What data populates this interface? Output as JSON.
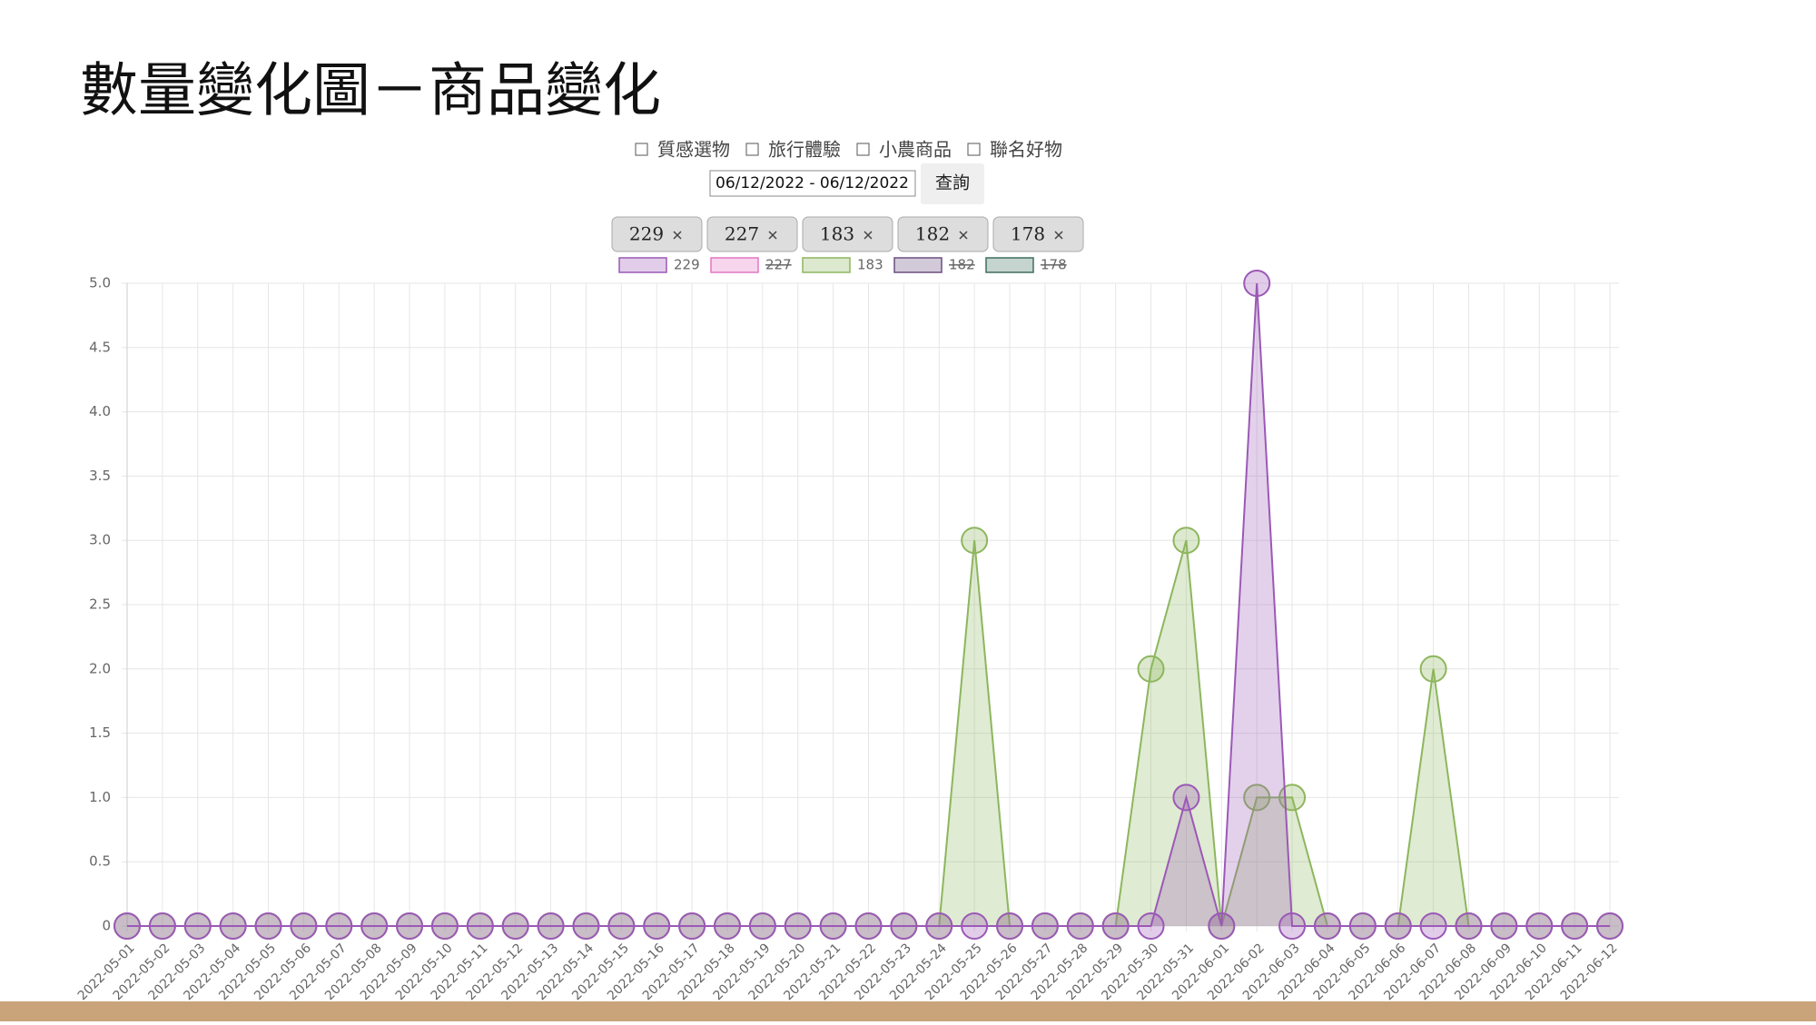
{
  "slide_title": "數量變化圖－商品變化",
  "filters": {
    "checkboxes": [
      "質感選物",
      "旅行體驗",
      "小農商品",
      "聯名好物"
    ],
    "date_range": "06/12/2022 - 06/12/2022",
    "button": "查詢",
    "chips": [
      "229",
      "227",
      "183",
      "182",
      "178"
    ]
  },
  "chart_data": {
    "type": "line",
    "area": true,
    "categories": [
      "2022-05-01",
      "2022-05-02",
      "2022-05-03",
      "2022-05-04",
      "2022-05-05",
      "2022-05-06",
      "2022-05-07",
      "2022-05-08",
      "2022-05-09",
      "2022-05-10",
      "2022-05-11",
      "2022-05-12",
      "2022-05-13",
      "2022-05-14",
      "2022-05-15",
      "2022-05-16",
      "2022-05-17",
      "2022-05-18",
      "2022-05-19",
      "2022-05-20",
      "2022-05-21",
      "2022-05-22",
      "2022-05-23",
      "2022-05-24",
      "2022-05-25",
      "2022-05-26",
      "2022-05-27",
      "2022-05-28",
      "2022-05-29",
      "2022-05-30",
      "2022-05-31",
      "2022-06-01",
      "2022-06-02",
      "2022-06-03",
      "2022-06-04",
      "2022-06-05",
      "2022-06-06",
      "2022-06-07",
      "2022-06-08",
      "2022-06-09",
      "2022-06-10",
      "2022-06-11",
      "2022-06-12"
    ],
    "series": [
      {
        "name": "229",
        "color": "#9b59b6",
        "values": [
          0,
          0,
          0,
          0,
          0,
          0,
          0,
          0,
          0,
          0,
          0,
          0,
          0,
          0,
          0,
          0,
          0,
          0,
          0,
          0,
          0,
          0,
          0,
          0,
          0,
          0,
          0,
          0,
          0,
          0,
          1,
          0,
          5,
          0,
          0,
          0,
          0,
          0,
          0,
          0,
          0,
          0,
          0
        ]
      },
      {
        "name": "227",
        "color": "#e377c2",
        "hidden": true
      },
      {
        "name": "183",
        "color": "#8db65e",
        "values": [
          0,
          0,
          0,
          0,
          0,
          0,
          0,
          0,
          0,
          0,
          0,
          0,
          0,
          0,
          0,
          0,
          0,
          0,
          0,
          0,
          0,
          0,
          0,
          0,
          3,
          0,
          0,
          0,
          0,
          2,
          3,
          0,
          1,
          1,
          0,
          0,
          0,
          2,
          0,
          0,
          0,
          0,
          0
        ]
      },
      {
        "name": "182",
        "color": "#6b4f80",
        "hidden": true
      },
      {
        "name": "178",
        "color": "#3f6f5f",
        "hidden": true
      }
    ],
    "ylim": [
      0,
      5
    ],
    "yticks": [
      0,
      0.5,
      {
        "value": 1,
        "label": "1.0"
      },
      1.5,
      {
        "value": 2,
        "label": "2.0"
      },
      2.5,
      {
        "value": 3,
        "label": "3.0"
      },
      3.5,
      {
        "value": 4,
        "label": "4.0"
      },
      4.5,
      {
        "value": 5,
        "label": "5.0"
      }
    ],
    "grid": true
  }
}
